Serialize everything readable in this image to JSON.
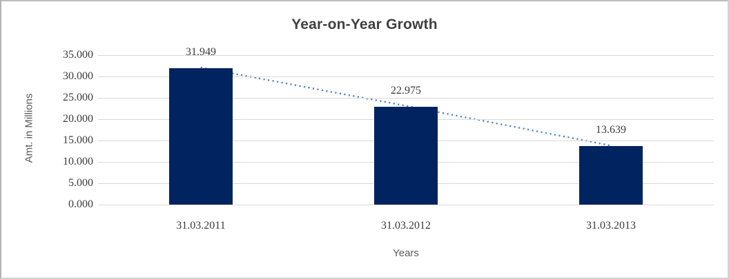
{
  "chart_data": {
    "type": "bar",
    "title": "Year-on-Year Growth",
    "xlabel": "Years",
    "ylabel": "Amt. in Millions",
    "categories": [
      "31.03.2011",
      "31.03.2012",
      "31.03.2013"
    ],
    "series": [
      {
        "name": "Amt. in Millions",
        "type": "bar",
        "values": [
          31.949,
          22.975,
          13.639
        ],
        "color": "#01235F"
      },
      {
        "name": "trend",
        "type": "line",
        "line_style": "dotted",
        "values": [
          31.949,
          22.975,
          13.639
        ],
        "color": "#4E86C8"
      }
    ],
    "data_labels": [
      "31.949",
      "22.975",
      "13.639"
    ],
    "ylim": [
      0,
      35
    ],
    "ytick_step": 5,
    "ytick_labels": [
      "35.000",
      "30.000",
      "25.000",
      "20.000",
      "15.000",
      "10.000",
      "5.000",
      "0.000"
    ],
    "grid": "horizontal",
    "legend": "none",
    "colors": {
      "bar_fill": "#01235F",
      "trend_line": "#4E86C8",
      "gridline": "#d9d9d9",
      "tick_text": "#3a3a3a",
      "title_text": "#404040",
      "axis_title_text": "#595959"
    }
  }
}
